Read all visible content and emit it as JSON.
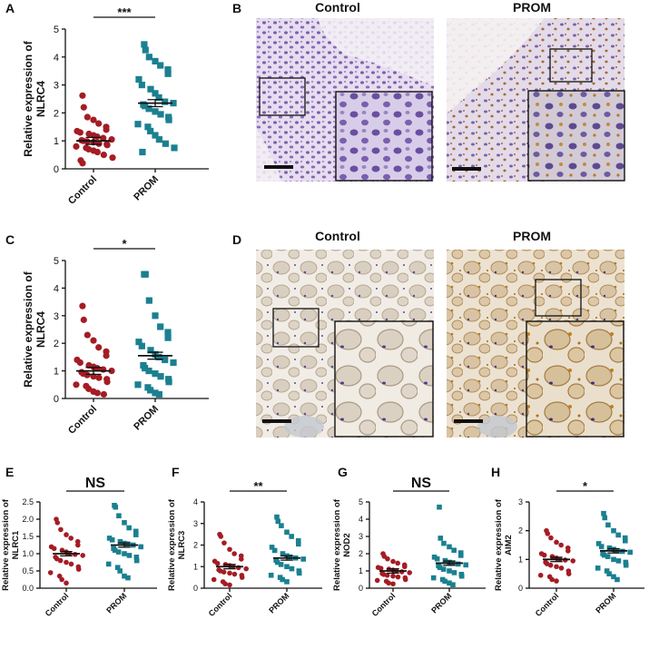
{
  "panels": {
    "A": "A",
    "B": "B",
    "C": "C",
    "D": "D",
    "E": "E",
    "F": "F",
    "G": "G",
    "H": "H"
  },
  "micrographs": {
    "B": {
      "left_title": "Control",
      "right_title": "PROM"
    },
    "D": {
      "left_title": "Control",
      "right_title": "PROM"
    }
  },
  "colors": {
    "control": "#a51c24",
    "prom": "#1a8090"
  },
  "chart_data": [
    {
      "panel": "A",
      "type": "scatter",
      "categories": [
        "Control",
        "PROM"
      ],
      "ylabel": [
        "Relative expression of",
        "NLRC4"
      ],
      "ylim": [
        0,
        5
      ],
      "yticks": [
        0,
        1,
        2,
        3,
        4,
        5
      ],
      "significance": "***",
      "series": [
        {
          "category": "Control",
          "marker": "circle",
          "mean": 1.0,
          "values": [
            2.62,
            2.2,
            1.85,
            1.75,
            1.62,
            1.5,
            1.4,
            1.35,
            1.3,
            1.25,
            1.2,
            1.15,
            1.1,
            1.05,
            1.02,
            1.0,
            0.98,
            0.95,
            0.9,
            0.88,
            0.85,
            0.8,
            0.75,
            0.7,
            0.65,
            0.6,
            0.5,
            0.4,
            0.3,
            0.2
          ]
        },
        {
          "category": "PROM",
          "marker": "square",
          "mean": 2.35,
          "values": [
            4.45,
            4.25,
            4.0,
            3.85,
            3.7,
            3.55,
            3.4,
            3.2,
            3.0,
            2.85,
            2.7,
            2.55,
            2.4,
            2.35,
            2.3,
            2.25,
            2.15,
            2.05,
            1.95,
            1.85,
            1.75,
            1.6,
            1.5,
            1.35,
            1.2,
            1.05,
            0.9,
            0.75,
            0.6
          ]
        }
      ]
    },
    {
      "panel": "C",
      "type": "scatter",
      "categories": [
        "Control",
        "PROM"
      ],
      "ylabel": [
        "Relative expression of",
        "NLRC4"
      ],
      "ylim": [
        0,
        5
      ],
      "yticks": [
        0,
        1,
        2,
        3,
        4,
        5
      ],
      "significance": "*",
      "series": [
        {
          "category": "Control",
          "marker": "circle",
          "mean": 1.0,
          "values": [
            3.35,
            2.85,
            2.3,
            2.1,
            1.85,
            1.7,
            1.55,
            1.4,
            1.3,
            1.2,
            1.15,
            1.1,
            1.05,
            1.0,
            0.95,
            0.9,
            0.85,
            0.8,
            0.75,
            0.7,
            0.6,
            0.5,
            0.45,
            0.35,
            0.25,
            0.2,
            0.15
          ]
        },
        {
          "category": "PROM",
          "marker": "square",
          "mean": 1.55,
          "values": [
            4.5,
            4.5,
            3.55,
            3.0,
            2.6,
            2.4,
            2.2,
            2.05,
            1.9,
            1.75,
            1.6,
            1.5,
            1.4,
            1.3,
            1.2,
            1.1,
            1.0,
            0.9,
            0.8,
            0.7,
            0.6,
            0.5,
            0.4,
            0.3,
            0.2,
            0.15
          ]
        }
      ]
    },
    {
      "panel": "E",
      "type": "scatter",
      "categories": [
        "Control",
        "PROM"
      ],
      "ylabel": [
        "Relative expression of",
        "NLRC1"
      ],
      "ylim": [
        0,
        2.5
      ],
      "yticks": [
        0.0,
        0.5,
        1.0,
        1.5,
        2.0,
        2.5
      ],
      "ytick_labels": [
        "0.0",
        "0.5",
        "1.0",
        "1.5",
        "2.0",
        "2.5"
      ],
      "significance": "NS",
      "series": [
        {
          "category": "Control",
          "marker": "circle",
          "mean": 1.0,
          "values": [
            2.0,
            1.9,
            1.7,
            1.55,
            1.45,
            1.35,
            1.25,
            1.2,
            1.15,
            1.1,
            1.05,
            1.0,
            0.98,
            0.95,
            0.9,
            0.85,
            0.8,
            0.75,
            0.7,
            0.62,
            0.55,
            0.45,
            0.35,
            0.25,
            0.15
          ]
        },
        {
          "category": "PROM",
          "marker": "square",
          "mean": 1.25,
          "values": [
            2.4,
            2.35,
            2.1,
            1.9,
            1.75,
            1.65,
            1.55,
            1.45,
            1.4,
            1.35,
            1.3,
            1.28,
            1.25,
            1.2,
            1.15,
            1.1,
            1.05,
            1.0,
            0.95,
            0.9,
            0.8,
            0.7,
            0.6,
            0.5,
            0.35,
            0.3
          ]
        }
      ]
    },
    {
      "panel": "F",
      "type": "scatter",
      "categories": [
        "Control",
        "PROM"
      ],
      "ylabel": [
        "Relative expression of",
        "NLRC3"
      ],
      "ylim": [
        0,
        4
      ],
      "yticks": [
        0,
        1,
        2,
        3,
        4
      ],
      "significance": "**",
      "series": [
        {
          "category": "Control",
          "marker": "circle",
          "mean": 1.0,
          "values": [
            2.5,
            2.4,
            2.1,
            1.8,
            1.6,
            1.5,
            1.35,
            1.25,
            1.15,
            1.1,
            1.05,
            1.0,
            0.95,
            0.9,
            0.85,
            0.8,
            0.75,
            0.7,
            0.65,
            0.6,
            0.5,
            0.4,
            0.3,
            0.2,
            0.15
          ]
        },
        {
          "category": "PROM",
          "marker": "square",
          "mean": 1.4,
          "values": [
            3.3,
            3.1,
            2.9,
            2.6,
            2.4,
            2.2,
            2.05,
            1.9,
            1.75,
            1.6,
            1.5,
            1.45,
            1.4,
            1.35,
            1.3,
            1.2,
            1.1,
            1.0,
            0.9,
            0.8,
            0.7,
            0.6,
            0.5,
            0.4,
            0.3
          ]
        }
      ]
    },
    {
      "panel": "G",
      "type": "scatter",
      "categories": [
        "Control",
        "PROM"
      ],
      "ylabel": [
        "Relative expression of",
        "NOD2"
      ],
      "ylim": [
        0,
        5
      ],
      "yticks": [
        0,
        1,
        2,
        3,
        4,
        5
      ],
      "significance": "NS",
      "series": [
        {
          "category": "Control",
          "marker": "circle",
          "mean": 1.0,
          "values": [
            2.0,
            1.85,
            1.7,
            1.55,
            1.45,
            1.35,
            1.25,
            1.2,
            1.15,
            1.1,
            1.05,
            1.0,
            0.95,
            0.9,
            0.85,
            0.8,
            0.75,
            0.7,
            0.65,
            0.6,
            0.5,
            0.45,
            0.4,
            0.3,
            0.25
          ]
        },
        {
          "category": "PROM",
          "marker": "square",
          "mean": 1.45,
          "values": [
            4.7,
            2.9,
            2.6,
            2.4,
            2.2,
            2.05,
            1.9,
            1.8,
            1.7,
            1.6,
            1.5,
            1.45,
            1.4,
            1.35,
            1.3,
            1.2,
            1.1,
            1.0,
            0.9,
            0.8,
            0.7,
            0.6,
            0.5,
            0.4,
            0.3,
            0.2
          ]
        }
      ]
    },
    {
      "panel": "H",
      "type": "scatter",
      "categories": [
        "Control",
        "PROM"
      ],
      "ylabel": [
        "Relative expression of",
        "AIM2"
      ],
      "ylim": [
        0,
        3
      ],
      "yticks": [
        0,
        1,
        2,
        3
      ],
      "significance": "*",
      "series": [
        {
          "category": "Control",
          "marker": "circle",
          "mean": 1.0,
          "values": [
            2.0,
            1.9,
            1.75,
            1.6,
            1.5,
            1.4,
            1.3,
            1.2,
            1.15,
            1.1,
            1.05,
            1.0,
            0.98,
            0.95,
            0.9,
            0.85,
            0.8,
            0.75,
            0.7,
            0.6,
            0.5,
            0.45,
            0.4,
            0.3,
            0.25
          ]
        },
        {
          "category": "PROM",
          "marker": "square",
          "mean": 1.3,
          "values": [
            2.6,
            2.45,
            2.2,
            2.0,
            1.85,
            1.75,
            1.65,
            1.55,
            1.45,
            1.4,
            1.35,
            1.3,
            1.28,
            1.25,
            1.2,
            1.15,
            1.1,
            1.0,
            0.95,
            0.9,
            0.8,
            0.7,
            0.6,
            0.5,
            0.4,
            0.3
          ]
        }
      ]
    }
  ]
}
